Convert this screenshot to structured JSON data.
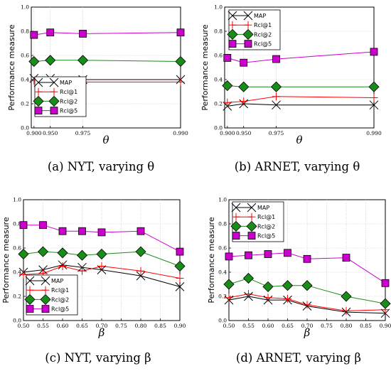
{
  "shared": {
    "ylabel": "Performance measure",
    "yticks": [
      "0.0",
      "0.2",
      "0.4",
      "0.6",
      "0.8",
      "1.0"
    ],
    "series_colors": {
      "MAP": "#000000",
      "Rcl@1": "#ff0000",
      "Rcl@2": "#1a8c1a",
      "Rcl@5": "#cc00cc"
    },
    "markers": {
      "MAP": "x-marker",
      "Rcl@1": "plus-marker",
      "Rcl@2": "diamond-marker",
      "Rcl@5": "square-marker"
    }
  },
  "chart_data": [
    {
      "type": "line",
      "caption": "(a)  NYT, varying θ",
      "xlabel": "θ",
      "ylabel": "Performance measure",
      "x": [
        0.9,
        0.95,
        0.975,
        0.99
      ],
      "xticks": [
        "0.900",
        "0.950",
        "0.975",
        "0.990"
      ],
      "xscale": "reciprocal",
      "xlim": [
        0.88,
        0.99
      ],
      "ylim": [
        0.0,
        1.0
      ],
      "grid": true,
      "legend_position": "bottom-left",
      "series": [
        {
          "name": "MAP",
          "values": [
            0.41,
            0.41,
            0.4,
            0.4
          ]
        },
        {
          "name": "Rcl@1",
          "values": [
            0.39,
            0.39,
            0.38,
            0.38
          ]
        },
        {
          "name": "Rcl@2",
          "values": [
            0.55,
            0.56,
            0.56,
            0.55
          ]
        },
        {
          "name": "Rcl@5",
          "values": [
            0.77,
            0.79,
            0.78,
            0.79
          ]
        }
      ]
    },
    {
      "type": "line",
      "caption": "(b)  ARNET, varying θ",
      "xlabel": "θ",
      "ylabel": "Performance measure",
      "x": [
        0.9,
        0.95,
        0.975,
        0.99
      ],
      "xticks": [
        "0.900",
        "0.950",
        "0.975",
        "0.990"
      ],
      "xscale": "reciprocal",
      "xlim": [
        0.88,
        0.99
      ],
      "ylim": [
        0.0,
        1.0
      ],
      "grid": true,
      "legend_position": "top-left",
      "series": [
        {
          "name": "MAP",
          "values": [
            0.18,
            0.2,
            0.19,
            0.19
          ]
        },
        {
          "name": "Rcl@1",
          "values": [
            0.21,
            0.22,
            0.26,
            0.25
          ]
        },
        {
          "name": "Rcl@2",
          "values": [
            0.35,
            0.34,
            0.34,
            0.34
          ]
        },
        {
          "name": "Rcl@5",
          "values": [
            0.58,
            0.54,
            0.57,
            0.63
          ]
        }
      ]
    },
    {
      "type": "line",
      "caption": "(c)  NYT, varying β",
      "xlabel": "β",
      "ylabel": "Performance measure",
      "x": [
        0.5,
        0.55,
        0.6,
        0.65,
        0.7,
        0.8,
        0.9
      ],
      "xticks": [
        "0.50",
        "0.55",
        "0.60",
        "0.65",
        "0.70",
        "0.75",
        "0.80",
        "0.85",
        "0.90"
      ],
      "xtick_values": [
        0.5,
        0.55,
        0.6,
        0.65,
        0.7,
        0.75,
        0.8,
        0.85,
        0.9
      ],
      "xscale": "linear",
      "xlim": [
        0.5,
        0.9
      ],
      "ylim": [
        0.0,
        1.0
      ],
      "grid": true,
      "legend_position": "bottom-left",
      "series": [
        {
          "name": "MAP",
          "values": [
            0.4,
            0.42,
            0.46,
            0.44,
            0.42,
            0.37,
            0.28
          ]
        },
        {
          "name": "Rcl@1",
          "values": [
            0.38,
            0.39,
            0.45,
            0.41,
            0.45,
            0.41,
            0.35
          ]
        },
        {
          "name": "Rcl@2",
          "values": [
            0.55,
            0.57,
            0.56,
            0.54,
            0.55,
            0.57,
            0.45
          ]
        },
        {
          "name": "Rcl@5",
          "values": [
            0.79,
            0.79,
            0.74,
            0.74,
            0.73,
            0.74,
            0.57
          ]
        }
      ]
    },
    {
      "type": "line",
      "caption": "(d)  ARNET, varying β",
      "xlabel": "β",
      "ylabel": "Performance measure",
      "x": [
        0.5,
        0.55,
        0.6,
        0.65,
        0.7,
        0.8,
        0.9
      ],
      "xticks": [
        "0.50",
        "0.55",
        "0.60",
        "0.65",
        "0.70",
        "0.75",
        "0.80",
        "0.85",
        "0.90"
      ],
      "xtick_values": [
        0.5,
        0.55,
        0.6,
        0.65,
        0.7,
        0.75,
        0.8,
        0.85,
        0.9
      ],
      "xscale": "linear",
      "xlim": [
        0.5,
        0.9
      ],
      "ylim": [
        0.0,
        1.0
      ],
      "grid": true,
      "legend_position": "top-left",
      "series": [
        {
          "name": "MAP",
          "values": [
            0.17,
            0.2,
            0.17,
            0.17,
            0.12,
            0.07,
            0.06
          ]
        },
        {
          "name": "Rcl@1",
          "values": [
            0.19,
            0.22,
            0.19,
            0.18,
            0.13,
            0.08,
            0.09
          ]
        },
        {
          "name": "Rcl@2",
          "values": [
            0.3,
            0.35,
            0.28,
            0.29,
            0.29,
            0.2,
            0.14
          ]
        },
        {
          "name": "Rcl@5",
          "values": [
            0.53,
            0.54,
            0.55,
            0.56,
            0.51,
            0.52,
            0.31
          ]
        }
      ]
    }
  ]
}
